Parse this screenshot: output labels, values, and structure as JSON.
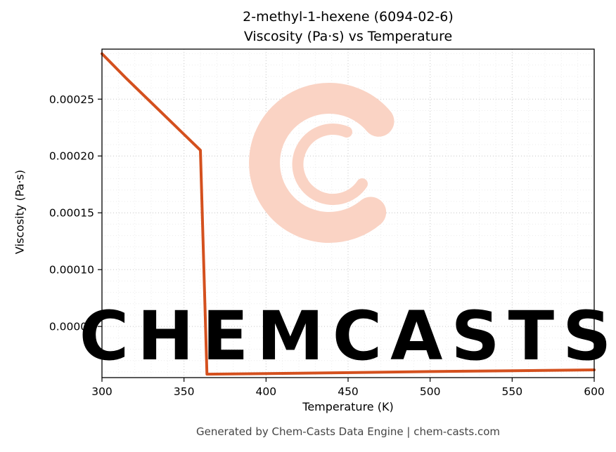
{
  "chart_data": {
    "type": "line",
    "title_line1": "2-methyl-1-hexene (6094-02-6)",
    "title_line2": "Viscosity (Pa·s) vs Temperature",
    "xlabel": "Temperature (K)",
    "ylabel": "Viscosity (Pa·s)",
    "xlim": [
      300,
      600
    ],
    "ylim": [
      5e-06,
      0.000294
    ],
    "x_ticks": [
      300,
      350,
      400,
      450,
      500,
      550,
      600
    ],
    "y_ticks": [
      {
        "value": 5e-05,
        "label": "0.00005"
      },
      {
        "value": 0.0001,
        "label": "0.00010"
      },
      {
        "value": 0.00015,
        "label": "0.00015"
      },
      {
        "value": 0.0002,
        "label": "0.00020"
      },
      {
        "value": 0.00025,
        "label": "0.00025"
      }
    ],
    "x_minor_step": 10,
    "y_minor_step": 1e-05,
    "grid": true,
    "legend": "none",
    "line_color": "#d4501e",
    "series": [
      {
        "name": "viscosity",
        "points": [
          [
            300,
            0.00029
          ],
          [
            315,
            0.000268
          ],
          [
            330,
            0.000247
          ],
          [
            345,
            0.000226
          ],
          [
            360,
            0.000205
          ],
          [
            364,
            8e-06
          ],
          [
            380,
            8.2e-06
          ],
          [
            420,
            8.9e-06
          ],
          [
            460,
            9.6e-06
          ],
          [
            500,
            1.03e-05
          ],
          [
            550,
            1.1e-05
          ],
          [
            600,
            1.18e-05
          ]
        ]
      }
    ]
  },
  "watermark": {
    "text": "CHEMCASTS",
    "color": "#fad3c4"
  },
  "footer": {
    "text": "Generated by Chem-Casts Data Engine | chem-casts.com"
  }
}
